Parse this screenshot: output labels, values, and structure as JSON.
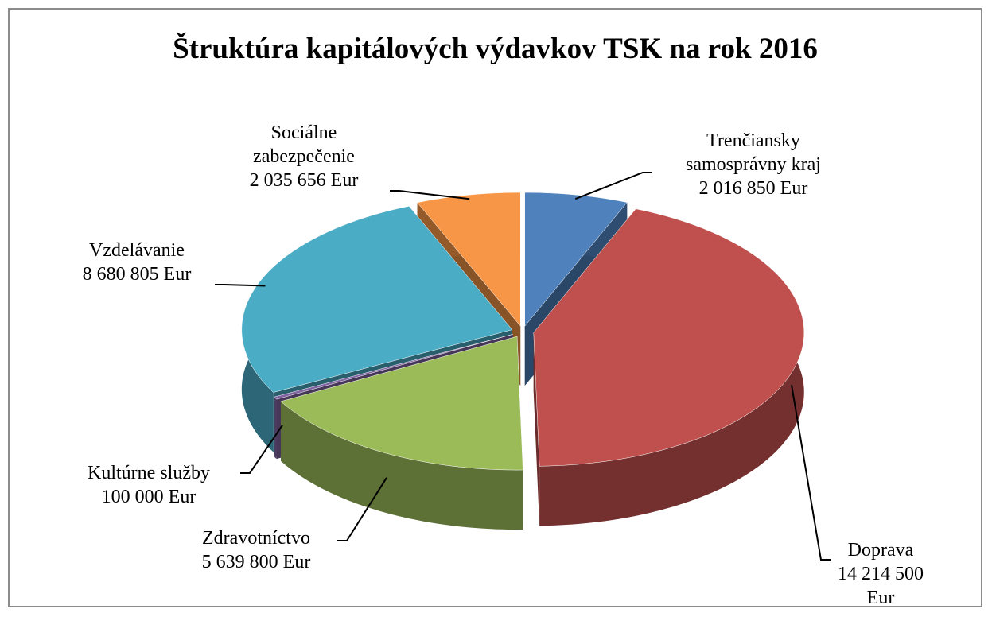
{
  "chart_data": {
    "type": "pie",
    "title": "Štruktúra kapitálových výdavkov TSK na rok 2016",
    "categories": [
      "Trenčiansky\nsamosprávny kraj",
      "Doprava",
      "Zdravotníctvo",
      "Kultúrne služby",
      "Vzdelávanie",
      "Sociálne\nzabezpečenie"
    ],
    "values": [
      2016850,
      14214500,
      5639800,
      100000,
      8680805,
      2035656
    ],
    "value_labels": [
      "2 016 850 Eur",
      "14 214 500 Eur",
      "5 639 800 Eur",
      "100 000 Eur",
      "8 680 805 Eur",
      "2 035 656 Eur"
    ],
    "colors": [
      "#4f81bd",
      "#c0504d",
      "#9bbb59",
      "#8064a2",
      "#4bacc6",
      "#f79646"
    ]
  }
}
